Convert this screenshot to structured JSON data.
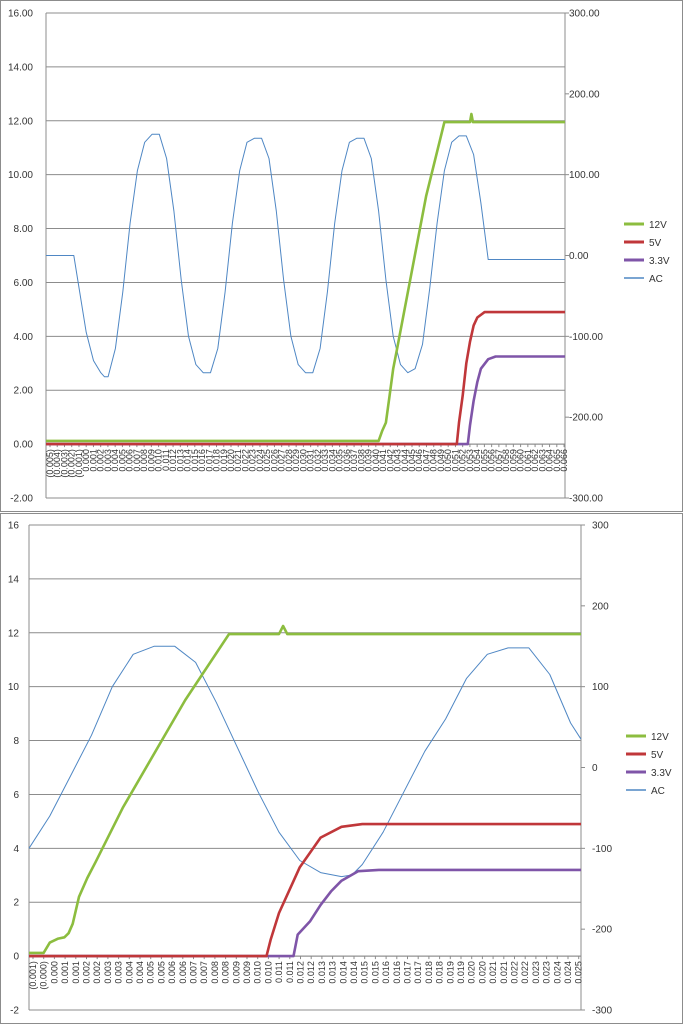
{
  "chart_data": [
    {
      "type": "line",
      "title": "",
      "y_left": {
        "range": [
          -2,
          16
        ],
        "ticks": [
          -2,
          0,
          2,
          4,
          6,
          8,
          10,
          12,
          14,
          16
        ],
        "tick_labels": [
          "-2.00",
          "0.00",
          "2.00",
          "4.00",
          "6.00",
          "8.00",
          "10.00",
          "12.00",
          "14.00",
          "16.00"
        ]
      },
      "y_right": {
        "range": [
          -300,
          300
        ],
        "ticks": [
          -300,
          -200,
          -100,
          0,
          100,
          200,
          300
        ],
        "tick_labels": [
          "-300.00",
          "-200.00",
          "-100.00",
          "0.00",
          "100.00",
          "200.00",
          "300.00"
        ]
      },
      "x_tick_labels": [
        "(0.005)",
        "(0.004)",
        "(0.003)",
        "(0.002)",
        "(0.001)",
        "0.000",
        "0.001",
        "0.002",
        "0.003",
        "0.004",
        "0.005",
        "0.006",
        "0.007",
        "0.008",
        "0.009",
        "0.010",
        "0.011",
        "0.012",
        "0.013",
        "0.014",
        "0.015",
        "0.016",
        "0.017",
        "0.018",
        "0.019",
        "0.020",
        "0.021",
        "0.022",
        "0.023",
        "0.024",
        "0.025",
        "0.026",
        "0.027",
        "0.028",
        "0.029",
        "0.030",
        "0.031",
        "0.032",
        "0.033",
        "0.034",
        "0.035",
        "0.036",
        "0.037",
        "0.038",
        "0.039",
        "0.040",
        "0.041",
        "0.042",
        "0.043",
        "0.044",
        "0.045",
        "0.046",
        "0.047",
        "0.048",
        "0.049",
        "0.050",
        "0.051",
        "0.052",
        "0.053",
        "0.054",
        "0.055",
        "0.056",
        "0.057",
        "0.058",
        "0.059",
        "0.060",
        "0.061",
        "0.062",
        "0.063",
        "0.064",
        "0.065",
        "0.066"
      ],
      "x_label_every": 1,
      "legend": "right",
      "series": [
        {
          "name": "12V",
          "axis": "left",
          "color": "#8cbd3f",
          "width": 2.6,
          "points": [
            [
              -0.005,
              0.12
            ],
            [
              0.0405,
              0.12
            ],
            [
              0.041,
              0.5
            ],
            [
              0.0415,
              0.8
            ],
            [
              0.042,
              1.8
            ],
            [
              0.0425,
              2.8
            ],
            [
              0.043,
              3.5
            ],
            [
              0.047,
              9.2
            ],
            [
              0.0495,
              11.95
            ],
            [
              0.053,
              11.95
            ],
            [
              0.0532,
              12.25
            ],
            [
              0.0534,
              11.95
            ],
            [
              0.066,
              11.95
            ]
          ]
        },
        {
          "name": "5V",
          "axis": "left",
          "color": "#c0373a",
          "width": 2.6,
          "points": [
            [
              -0.005,
              0
            ],
            [
              0.0512,
              0
            ],
            [
              0.0515,
              0.8
            ],
            [
              0.052,
              1.8
            ],
            [
              0.0525,
              3.0
            ],
            [
              0.053,
              3.8
            ],
            [
              0.0535,
              4.4
            ],
            [
              0.054,
              4.7
            ],
            [
              0.055,
              4.9
            ],
            [
              0.066,
              4.9
            ]
          ]
        },
        {
          "name": "3.3V",
          "axis": "left",
          "color": "#7f55a8",
          "width": 2.6,
          "points": [
            [
              -0.005,
              0
            ],
            [
              0.0527,
              0
            ],
            [
              0.053,
              0.7
            ],
            [
              0.0535,
              1.6
            ],
            [
              0.054,
              2.3
            ],
            [
              0.0545,
              2.8
            ],
            [
              0.0555,
              3.15
            ],
            [
              0.0565,
              3.25
            ],
            [
              0.066,
              3.25
            ]
          ]
        },
        {
          "name": "AC",
          "axis": "right",
          "color": "#4f87c4",
          "width": 1,
          "points": [
            [
              -0.005,
              0
            ],
            [
              -0.0012,
              0
            ],
            [
              0.0005,
              -95
            ],
            [
              0.0015,
              -130
            ],
            [
              0.0025,
              -145
            ],
            [
              0.003,
              -150
            ],
            [
              0.0035,
              -150
            ],
            [
              0.0045,
              -115
            ],
            [
              0.0055,
              -45
            ],
            [
              0.0065,
              40
            ],
            [
              0.0075,
              105
            ],
            [
              0.0085,
              140
            ],
            [
              0.0095,
              150
            ],
            [
              0.0105,
              150
            ],
            [
              0.0115,
              120
            ],
            [
              0.0125,
              55
            ],
            [
              0.0135,
              -30
            ],
            [
              0.0145,
              -100
            ],
            [
              0.0155,
              -135
            ],
            [
              0.0165,
              -145
            ],
            [
              0.0175,
              -145
            ],
            [
              0.0185,
              -115
            ],
            [
              0.0195,
              -45
            ],
            [
              0.0205,
              40
            ],
            [
              0.0215,
              105
            ],
            [
              0.0225,
              140
            ],
            [
              0.0235,
              145
            ],
            [
              0.0245,
              145
            ],
            [
              0.0255,
              120
            ],
            [
              0.0265,
              55
            ],
            [
              0.0275,
              -30
            ],
            [
              0.0285,
              -100
            ],
            [
              0.0295,
              -135
            ],
            [
              0.0305,
              -145
            ],
            [
              0.0315,
              -145
            ],
            [
              0.0325,
              -115
            ],
            [
              0.0335,
              -45
            ],
            [
              0.0345,
              40
            ],
            [
              0.0355,
              105
            ],
            [
              0.0365,
              140
            ],
            [
              0.0375,
              145
            ],
            [
              0.0385,
              145
            ],
            [
              0.0395,
              120
            ],
            [
              0.0405,
              55
            ],
            [
              0.0415,
              -30
            ],
            [
              0.0425,
              -100
            ],
            [
              0.0435,
              -135
            ],
            [
              0.0445,
              -145
            ],
            [
              0.0455,
              -140
            ],
            [
              0.0465,
              -110
            ],
            [
              0.0475,
              -40
            ],
            [
              0.0485,
              40
            ],
            [
              0.0495,
              105
            ],
            [
              0.0505,
              140
            ],
            [
              0.0515,
              148
            ],
            [
              0.0525,
              148
            ],
            [
              0.0535,
              125
            ],
            [
              0.0545,
              65
            ],
            [
              0.0555,
              -5
            ],
            [
              0.066,
              -5
            ]
          ]
        }
      ]
    },
    {
      "type": "line",
      "title": "",
      "y_left": {
        "range": [
          -2,
          16
        ],
        "ticks": [
          -2,
          0,
          2,
          4,
          6,
          8,
          10,
          12,
          14,
          16
        ],
        "tick_labels": [
          "-2",
          "0",
          "2",
          "4",
          "6",
          "8",
          "10",
          "12",
          "14",
          "16"
        ]
      },
      "y_right": {
        "range": [
          -300,
          300
        ],
        "ticks": [
          -300,
          -200,
          -100,
          0,
          100,
          200,
          300
        ],
        "tick_labels": [
          "-300",
          "-200",
          "-100",
          "0",
          "100",
          "200",
          "300"
        ]
      },
      "x_tick_labels": [
        "(0.001)",
        "(0.000)",
        "0.000",
        "0.001",
        "0.001",
        "0.002",
        "0.002",
        "0.003",
        "0.003",
        "0.004",
        "0.004",
        "0.005",
        "0.005",
        "0.006",
        "0.006",
        "0.007",
        "0.007",
        "0.008",
        "0.008",
        "0.009",
        "0.009",
        "0.010",
        "0.010",
        "0.011",
        "0.011",
        "0.012",
        "0.012",
        "0.013",
        "0.013",
        "0.014",
        "0.014",
        "0.015",
        "0.015",
        "0.016",
        "0.016",
        "0.017",
        "0.017",
        "0.018",
        "0.018",
        "0.019",
        "0.019",
        "0.020",
        "0.020",
        "0.021",
        "0.021",
        "0.022",
        "0.022",
        "0.023",
        "0.023",
        "0.024",
        "0.024",
        "0.025",
        "0.025"
      ],
      "x_label_every": 1,
      "legend": "right",
      "series": [
        {
          "name": "12V",
          "axis": "left",
          "color": "#8cbd3f",
          "width": 2.6,
          "points": [
            [
              -0.001,
              0.12
            ],
            [
              -0.0003,
              0.12
            ],
            [
              0.0,
              0.5
            ],
            [
              0.0004,
              0.65
            ],
            [
              0.0007,
              0.7
            ],
            [
              0.0009,
              0.85
            ],
            [
              0.0011,
              1.2
            ],
            [
              0.0014,
              2.2
            ],
            [
              0.0018,
              2.9
            ],
            [
              0.0022,
              3.5
            ],
            [
              0.0035,
              5.5
            ],
            [
              0.0065,
              9.5
            ],
            [
              0.0086,
              11.95
            ],
            [
              0.011,
              11.95
            ],
            [
              0.0112,
              12.25
            ],
            [
              0.0114,
              11.95
            ],
            [
              0.0255,
              11.95
            ]
          ]
        },
        {
          "name": "5V",
          "axis": "left",
          "color": "#c0373a",
          "width": 2.6,
          "points": [
            [
              -0.001,
              0
            ],
            [
              0.0104,
              0
            ],
            [
              0.0106,
              0.6
            ],
            [
              0.011,
              1.6
            ],
            [
              0.012,
              3.3
            ],
            [
              0.013,
              4.4
            ],
            [
              0.014,
              4.8
            ],
            [
              0.015,
              4.9
            ],
            [
              0.0255,
              4.9
            ]
          ]
        },
        {
          "name": "3.3V",
          "axis": "left",
          "color": "#7f55a8",
          "width": 2.6,
          "points": [
            [
              -0.001,
              0
            ],
            [
              0.0117,
              0
            ],
            [
              0.0119,
              0.8
            ],
            [
              0.0125,
              1.3
            ],
            [
              0.013,
              1.9
            ],
            [
              0.0135,
              2.4
            ],
            [
              0.014,
              2.8
            ],
            [
              0.0148,
              3.15
            ],
            [
              0.0158,
              3.2
            ],
            [
              0.0255,
              3.2
            ]
          ]
        },
        {
          "name": "AC",
          "axis": "right",
          "color": "#4f87c4",
          "width": 1,
          "points": [
            [
              -0.001,
              -100
            ],
            [
              0.0,
              -60
            ],
            [
              0.001,
              -10
            ],
            [
              0.002,
              40
            ],
            [
              0.003,
              100
            ],
            [
              0.004,
              140
            ],
            [
              0.005,
              150
            ],
            [
              0.006,
              150
            ],
            [
              0.007,
              130
            ],
            [
              0.008,
              80
            ],
            [
              0.009,
              25
            ],
            [
              0.01,
              -30
            ],
            [
              0.011,
              -80
            ],
            [
              0.012,
              -115
            ],
            [
              0.013,
              -130
            ],
            [
              0.014,
              -135
            ],
            [
              0.0145,
              -133
            ],
            [
              0.015,
              -120
            ],
            [
              0.016,
              -80
            ],
            [
              0.017,
              -30
            ],
            [
              0.018,
              20
            ],
            [
              0.019,
              60
            ],
            [
              0.02,
              110
            ],
            [
              0.021,
              140
            ],
            [
              0.022,
              148
            ],
            [
              0.023,
              148
            ],
            [
              0.024,
              115
            ],
            [
              0.025,
              55
            ],
            [
              0.0255,
              35
            ]
          ]
        }
      ]
    }
  ]
}
